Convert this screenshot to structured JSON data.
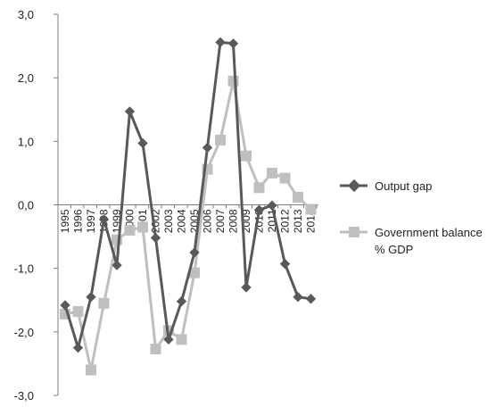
{
  "chart_data": {
    "type": "line",
    "title": "",
    "xlabel": "",
    "ylabel": "",
    "x": [
      "1995",
      "1996",
      "1997",
      "1998",
      "1999",
      "2000",
      "2001",
      "2002",
      "2003",
      "2004",
      "2005",
      "2006",
      "2007",
      "2008",
      "2009",
      "2010",
      "2011",
      "2012",
      "2013",
      "2014"
    ],
    "ylim": [
      -3.0,
      3.0
    ],
    "yticks": [
      "3,0",
      "2,0",
      "1,0",
      "0,0",
      "-1,0",
      "-2,0",
      "-3,0"
    ],
    "ytick_values": [
      3,
      2,
      1,
      0,
      -1,
      -2,
      -3
    ],
    "grid": false,
    "legend_position": "right",
    "series": [
      {
        "name": "Output gap",
        "color": "#595959",
        "marker": "diamond",
        "values": [
          -1.58,
          -2.25,
          -1.45,
          -0.23,
          -0.95,
          1.47,
          0.97,
          -0.52,
          -2.12,
          -1.52,
          -0.75,
          0.9,
          2.56,
          2.54,
          -1.3,
          -0.08,
          -0.01,
          -0.93,
          -1.45,
          -1.48
        ]
      },
      {
        "name": "Government balance % GDP",
        "name_lines": [
          "Government balance",
          "% GDP"
        ],
        "color": "#bfbfbf",
        "marker": "square",
        "values": [
          -1.72,
          -1.68,
          -2.6,
          -1.55,
          -0.55,
          -0.4,
          -0.35,
          -2.27,
          -1.98,
          -2.12,
          -1.07,
          0.56,
          1.02,
          1.95,
          0.77,
          0.27,
          0.5,
          0.42,
          0.12,
          -0.07
        ]
      }
    ]
  }
}
